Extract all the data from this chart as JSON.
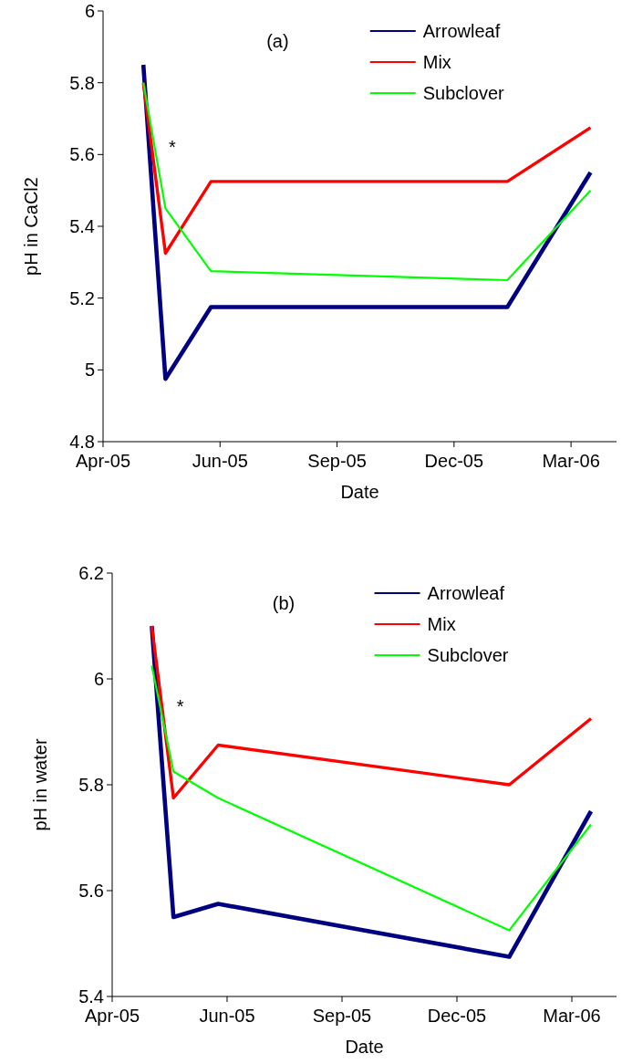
{
  "chart_data": [
    {
      "type": "line",
      "title": "(a)",
      "xlabel": "Date",
      "ylabel": "pH in CaCl2",
      "x": [
        "2005-05-02",
        "2005-05-19",
        "2005-06-23",
        "2006-02-06",
        "2006-04-11"
      ],
      "series": [
        {
          "name": "Arrowleaf",
          "color": "#000080",
          "values": [
            5.85,
            4.975,
            5.175,
            5.175,
            5.55
          ]
        },
        {
          "name": "Mix",
          "color": "#ff0000",
          "values": [
            5.8,
            5.325,
            5.525,
            5.525,
            5.675
          ]
        },
        {
          "name": "Subclover",
          "color": "#00ff00",
          "values": [
            5.8,
            5.45,
            5.275,
            5.25,
            5.5
          ]
        }
      ],
      "xlim": [
        "2005-04-01",
        "2006-05-01"
      ],
      "xticks": [
        {
          "value": "2005-04-01",
          "label": "Apr-05"
        },
        {
          "value": "2005-06-30",
          "label": "Jun-05"
        },
        {
          "value": "2005-09-28",
          "label": "Sep-05"
        },
        {
          "value": "2005-12-27",
          "label": "Dec-05"
        },
        {
          "value": "2006-03-27",
          "label": "Mar-06"
        }
      ],
      "ylim": [
        4.8,
        6
      ],
      "yticks": [
        4.8,
        5,
        5.2,
        5.4,
        5.6,
        5.8,
        6
      ],
      "grid": false,
      "legend": "top right",
      "marker": "none",
      "line_style": "solid",
      "annotations": [
        "*"
      ]
    },
    {
      "type": "line",
      "title": "(b)",
      "xlabel": "Date",
      "ylabel": "pH in water",
      "x": [
        "2005-05-02",
        "2005-05-19",
        "2005-06-23",
        "2006-02-06",
        "2006-04-11"
      ],
      "series": [
        {
          "name": "Arrowleaf",
          "color": "#000080",
          "values": [
            6.1,
            5.55,
            5.575,
            5.475,
            5.75
          ]
        },
        {
          "name": "Mix",
          "color": "#ff0000",
          "values": [
            6.1,
            5.775,
            5.875,
            5.8,
            5.925
          ]
        },
        {
          "name": "Subclover",
          "color": "#00ff00",
          "values": [
            6.025,
            5.825,
            5.775,
            5.525,
            5.725
          ]
        }
      ],
      "xlim": [
        "2005-04-01",
        "2006-05-01"
      ],
      "xticks": [
        {
          "value": "2005-04-01",
          "label": "Apr-05"
        },
        {
          "value": "2005-06-30",
          "label": "Jun-05"
        },
        {
          "value": "2005-09-28",
          "label": "Sep-05"
        },
        {
          "value": "2005-12-27",
          "label": "Dec-05"
        },
        {
          "value": "2006-03-27",
          "label": "Mar-06"
        }
      ],
      "ylim": [
        5.4,
        6.2
      ],
      "yticks": [
        5.4,
        5.6,
        5.8,
        6,
        6.2
      ],
      "grid": false,
      "legend": "top right",
      "marker": "none",
      "line_style": "solid",
      "annotations": [
        "*"
      ]
    }
  ]
}
